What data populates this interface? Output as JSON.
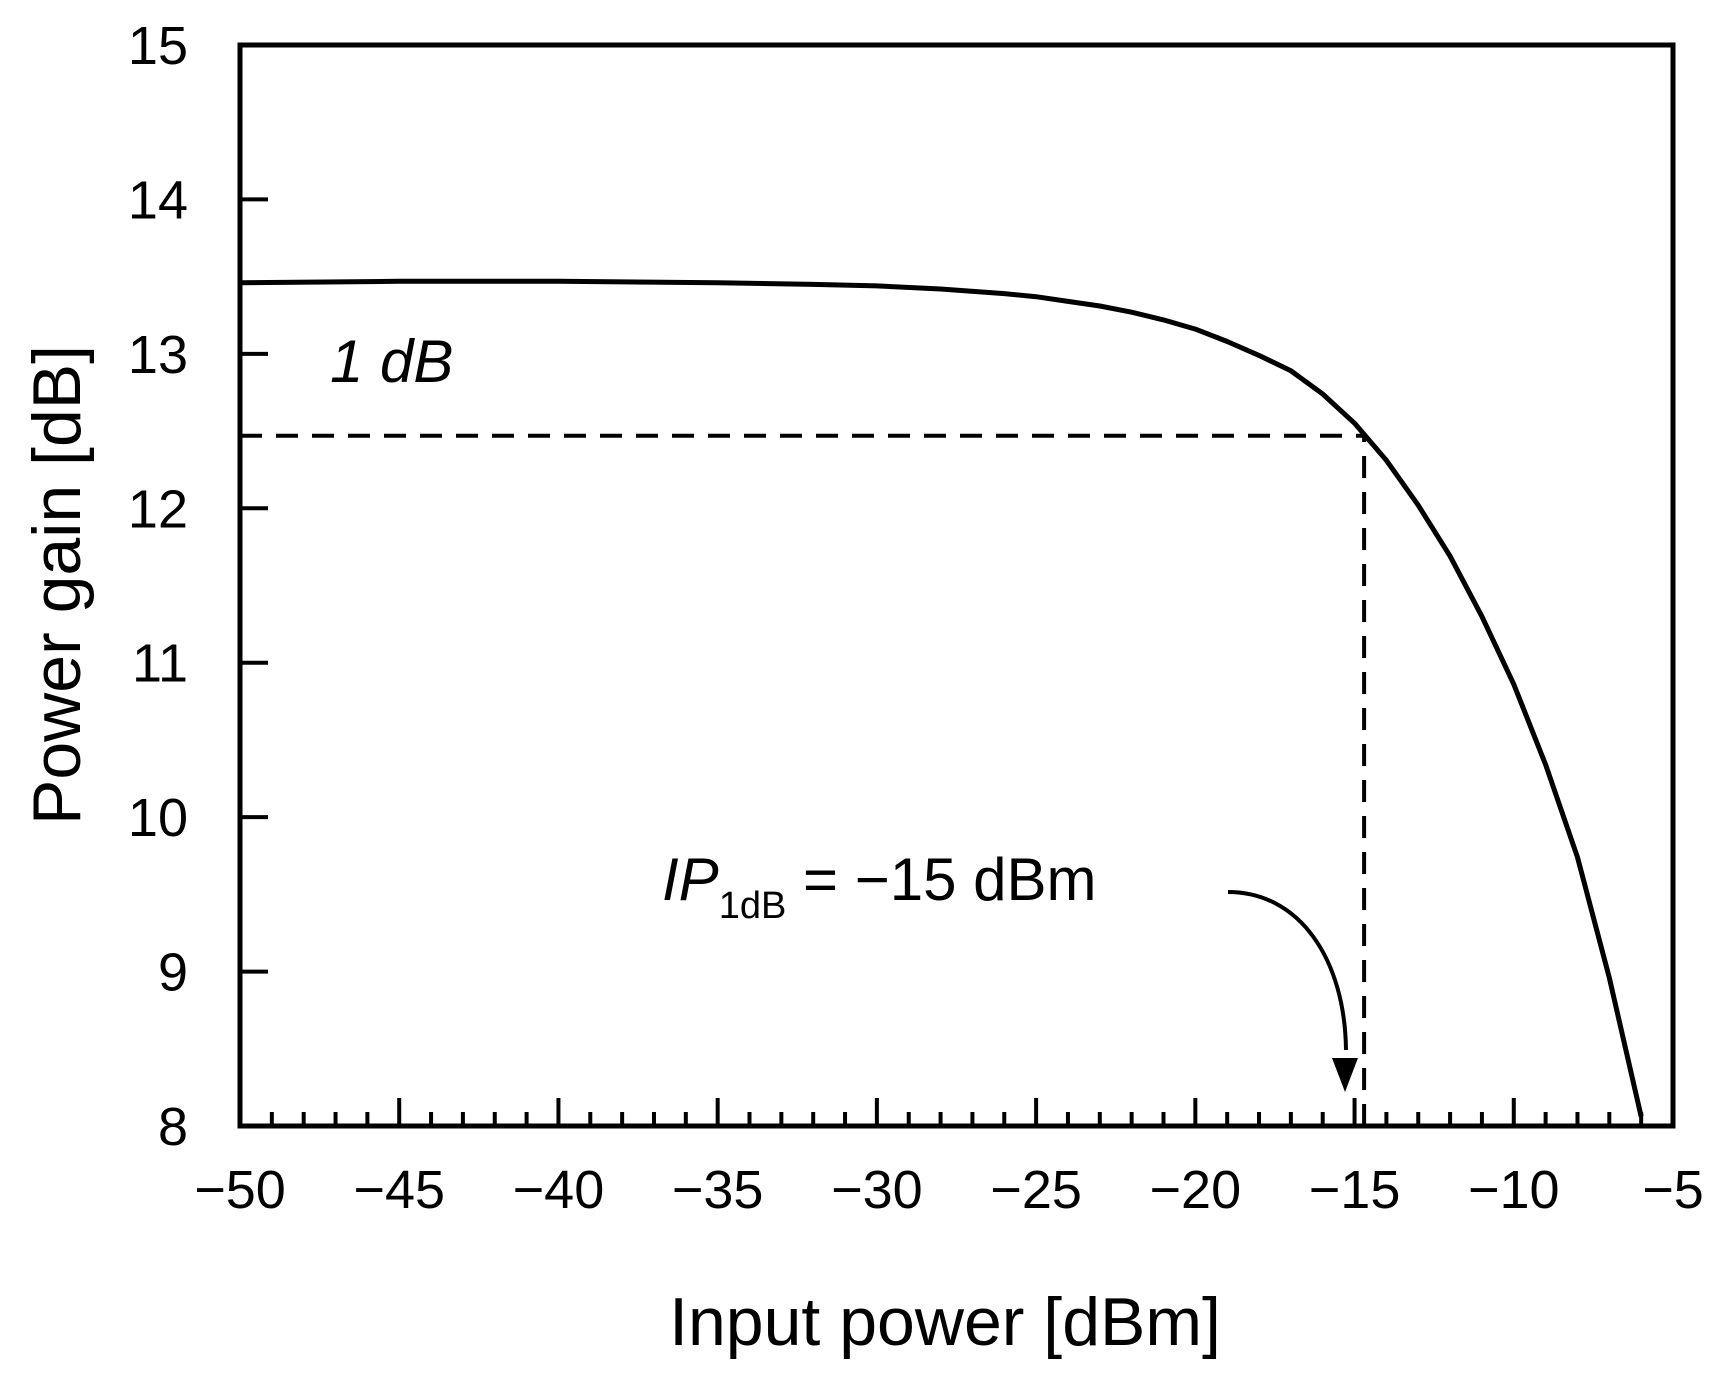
{
  "chart_data": {
    "type": "line",
    "xlabel": "Input power [dBm]",
    "ylabel": "Power gain [dB]",
    "xlim": [
      -50,
      -5
    ],
    "ylim": [
      8,
      15
    ],
    "xticks": [
      -50,
      -45,
      -40,
      -35,
      -30,
      -25,
      -20,
      -15,
      -10,
      -5
    ],
    "xtick_labels": [
      "−50",
      "−45",
      "−40",
      "−35",
      "−30",
      "−25",
      "−20",
      "−15",
      "−10",
      "−5"
    ],
    "yticks": [
      8,
      9,
      10,
      11,
      12,
      13,
      14,
      15
    ],
    "ytick_labels": [
      "8",
      "9",
      "10",
      "11",
      "12",
      "13",
      "14",
      "15"
    ],
    "minor_x_step": 1,
    "grid": false,
    "series": [
      {
        "x": [
          -50,
          -45,
          -40,
          -35,
          -32,
          -30,
          -28,
          -26,
          -25,
          -24,
          -23,
          -22,
          -21,
          -20,
          -19,
          -18,
          -17,
          -16,
          -15,
          -14,
          -13,
          -12,
          -11,
          -10,
          -9,
          -8,
          -7,
          -6
        ],
        "y": [
          13.46,
          13.47,
          13.47,
          13.46,
          13.45,
          13.44,
          13.42,
          13.39,
          13.37,
          13.34,
          13.31,
          13.27,
          13.22,
          13.16,
          13.08,
          12.99,
          12.89,
          12.74,
          12.55,
          12.31,
          12.02,
          11.69,
          11.3,
          10.86,
          10.34,
          9.74,
          8.96,
          8.06
        ]
      }
    ],
    "reference_lines": [
      {
        "orientation": "horizontal",
        "y": 12.47,
        "x_from": -50,
        "x_to": -14.7,
        "style": "dashed"
      },
      {
        "orientation": "vertical",
        "x": -14.7,
        "y_from": 8,
        "y_to": 12.47,
        "style": "dashed"
      }
    ],
    "annotations": {
      "one_db": "1 dB",
      "ip_symbol": "IP",
      "ip_subscript": "1dB",
      "ip_value": " = −15 dBm"
    }
  }
}
